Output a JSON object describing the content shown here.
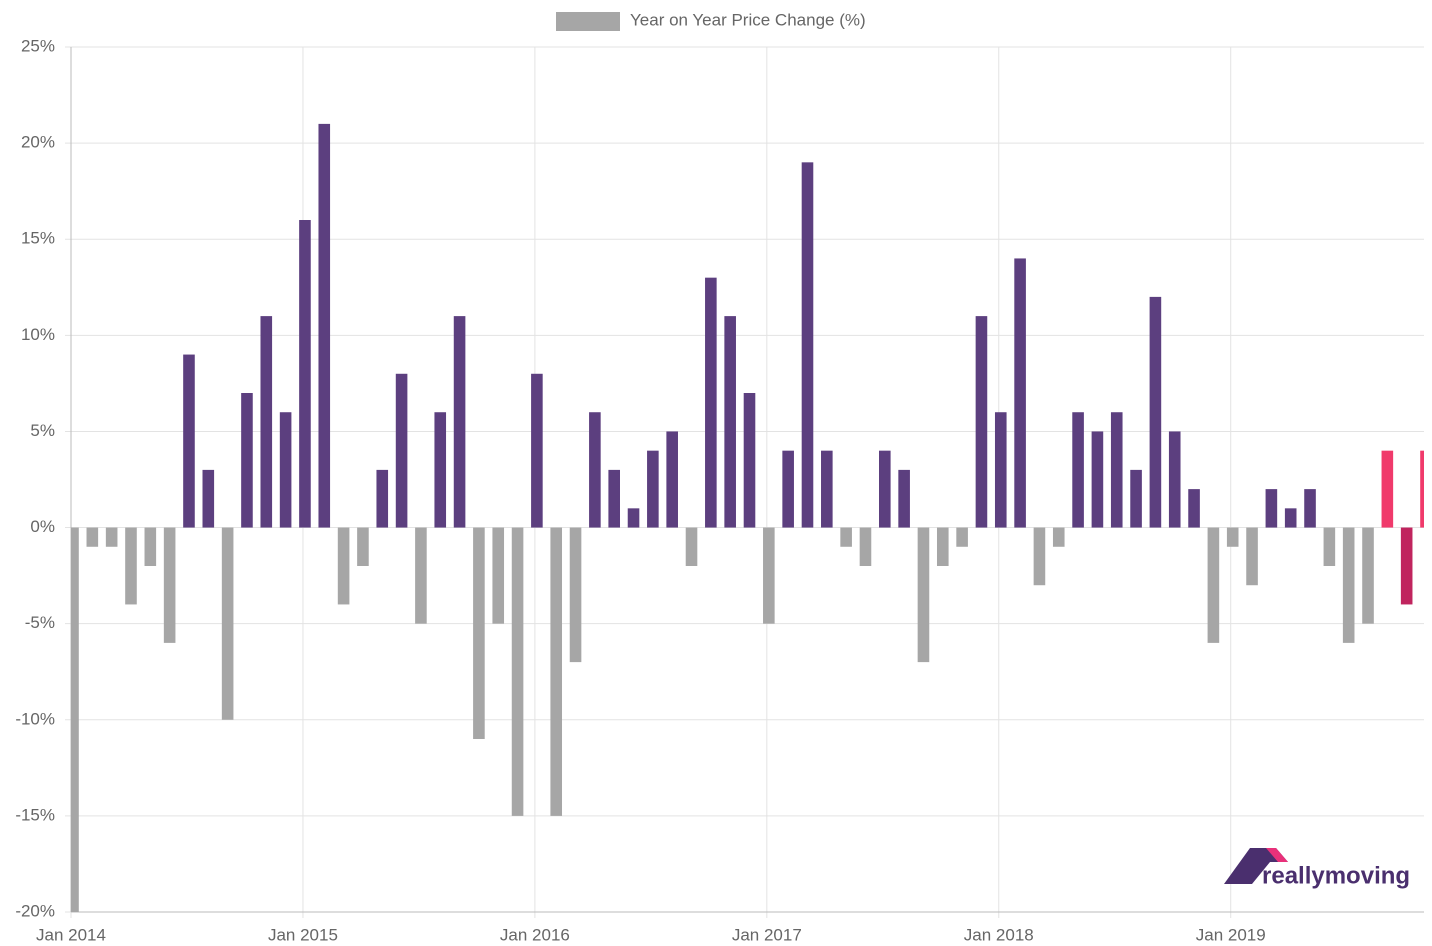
{
  "chart_data": {
    "type": "bar",
    "series": [
      {
        "name": "Year on Year Price Change (%)",
        "color": "#a6a6a6",
        "values": [
          -20,
          -1,
          -1,
          -4,
          -2,
          -6,
          9,
          3,
          -10,
          7,
          11,
          6,
          16,
          21,
          -4,
          -2,
          3,
          8,
          -5,
          6,
          11,
          -11,
          -5,
          -15,
          8,
          -15,
          -7,
          6,
          3,
          1,
          4,
          5,
          -2,
          13,
          11,
          7,
          -5,
          4,
          19,
          4,
          -1,
          -2,
          4,
          3,
          -7,
          -2,
          -1,
          11,
          6,
          14,
          -3,
          -1,
          6,
          5,
          6,
          3,
          12,
          5,
          2,
          -6,
          -1,
          -3,
          2,
          1,
          2,
          -2,
          -6,
          -5,
          4,
          -4,
          4
        ],
        "colors": [
          "#a6a6a6",
          "#a6a6a6",
          "#a6a6a6",
          "#a6a6a6",
          "#a6a6a6",
          "#a6a6a6",
          "#5c3f7f",
          "#5c3f7f",
          "#a6a6a6",
          "#5c3f7f",
          "#5c3f7f",
          "#5c3f7f",
          "#5c3f7f",
          "#5c3f7f",
          "#a6a6a6",
          "#a6a6a6",
          "#5c3f7f",
          "#5c3f7f",
          "#a6a6a6",
          "#5c3f7f",
          "#5c3f7f",
          "#a6a6a6",
          "#a6a6a6",
          "#a6a6a6",
          "#5c3f7f",
          "#a6a6a6",
          "#a6a6a6",
          "#5c3f7f",
          "#5c3f7f",
          "#5c3f7f",
          "#5c3f7f",
          "#5c3f7f",
          "#a6a6a6",
          "#5c3f7f",
          "#5c3f7f",
          "#5c3f7f",
          "#a6a6a6",
          "#5c3f7f",
          "#5c3f7f",
          "#5c3f7f",
          "#a6a6a6",
          "#a6a6a6",
          "#5c3f7f",
          "#5c3f7f",
          "#a6a6a6",
          "#a6a6a6",
          "#a6a6a6",
          "#5c3f7f",
          "#5c3f7f",
          "#5c3f7f",
          "#a6a6a6",
          "#a6a6a6",
          "#5c3f7f",
          "#5c3f7f",
          "#5c3f7f",
          "#5c3f7f",
          "#5c3f7f",
          "#5c3f7f",
          "#5c3f7f",
          "#a6a6a6",
          "#a6a6a6",
          "#a6a6a6",
          "#5c3f7f",
          "#5c3f7f",
          "#5c3f7f",
          "#a6a6a6",
          "#a6a6a6",
          "#a6a6a6",
          "#f03a6b",
          "#c0245e",
          "#f03a6b"
        ]
      }
    ],
    "x": [
      "2014-01",
      "2014-02",
      "2014-03",
      "2014-04",
      "2014-05",
      "2014-06",
      "2014-07",
      "2014-08",
      "2014-09",
      "2014-10",
      "2014-11",
      "2014-12",
      "2015-01",
      "2015-02",
      "2015-03",
      "2015-04",
      "2015-05",
      "2015-06",
      "2015-07",
      "2015-08",
      "2015-09",
      "2015-10",
      "2015-11",
      "2015-12",
      "2016-01",
      "2016-02",
      "2016-03",
      "2016-04",
      "2016-05",
      "2016-06",
      "2016-07",
      "2016-08",
      "2016-09",
      "2016-10",
      "2016-11",
      "2016-12",
      "2017-01",
      "2017-02",
      "2017-03",
      "2017-04",
      "2017-05",
      "2017-06",
      "2017-07",
      "2017-08",
      "2017-09",
      "2017-10",
      "2017-11",
      "2017-12",
      "2018-01",
      "2018-02",
      "2018-03",
      "2018-04",
      "2018-05",
      "2018-06",
      "2018-07",
      "2018-08",
      "2018-09",
      "2018-10",
      "2018-11",
      "2018-12",
      "2019-01",
      "2019-02",
      "2019-03",
      "2019-04",
      "2019-05",
      "2019-06",
      "2019-07",
      "2019-08",
      "2019-09",
      "2019-10",
      "2019-11"
    ],
    "xlim": [
      "2014-01",
      "2019-11"
    ],
    "xticks": [
      {
        "value": "2014-01",
        "label": "Jan 2014"
      },
      {
        "value": "2015-01",
        "label": "Jan 2015"
      },
      {
        "value": "2016-01",
        "label": "Jan 2016"
      },
      {
        "value": "2017-01",
        "label": "Jan 2017"
      },
      {
        "value": "2018-01",
        "label": "Jan 2018"
      },
      {
        "value": "2019-01",
        "label": "Jan 2019"
      }
    ],
    "ylim": [
      -20,
      25
    ],
    "yticks": [
      {
        "value": -20,
        "label": "-20%"
      },
      {
        "value": -15,
        "label": "-15%"
      },
      {
        "value": -10,
        "label": "-10%"
      },
      {
        "value": -5,
        "label": "-5%"
      },
      {
        "value": 0,
        "label": "0%"
      },
      {
        "value": 5,
        "label": "5%"
      },
      {
        "value": 10,
        "label": "10%"
      },
      {
        "value": 15,
        "label": "15%"
      },
      {
        "value": 20,
        "label": "20%"
      },
      {
        "value": 25,
        "label": "25%"
      }
    ],
    "grid": true,
    "legend": "top",
    "logo": "reallymoving"
  }
}
